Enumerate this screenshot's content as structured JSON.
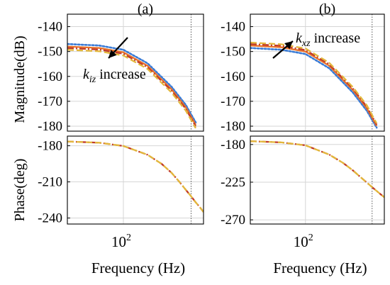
{
  "figure": {
    "ylabel_magnitude": "Magnitude(dB)",
    "ylabel_phase": "Phase(deg)"
  },
  "colors": {
    "blue_dotted": "#3a7bd5",
    "orange_solid": "#e8722a",
    "yellow_dashed": "#e3b83c",
    "red_dashdot": "#c0392b"
  },
  "chart_data": [
    {
      "type": "line",
      "panel": "(a)",
      "plot": "magnitude",
      "title": "(a)",
      "xlabel": "Frequency (Hz)",
      "ylabel": "Magnitude(dB)",
      "xscale": "log",
      "xlim": [
        20,
        1000
      ],
      "ylim": [
        -182,
        -135
      ],
      "yticks": [
        -140,
        -150,
        -160,
        -170,
        -180
      ],
      "xticks": [
        {
          "value": 100,
          "base": "10",
          "exp": "2"
        }
      ],
      "grid": true,
      "vline": 700,
      "annotation": {
        "italic": "k",
        "sub": "iz",
        "rest": " increase"
      },
      "x": [
        20,
        50,
        100,
        200,
        400,
        600,
        800
      ],
      "series": [
        {
          "color": "blue_dotted",
          "style": "dotted",
          "values": [
            -147.0,
            -147.6,
            -149.3,
            -154.7,
            -164.2,
            -171.4,
            -178.5
          ]
        },
        {
          "color": "orange_solid",
          "style": "solid",
          "values": [
            -148.0,
            -148.6,
            -150.3,
            -155.7,
            -165.2,
            -172.4,
            -179.5
          ]
        },
        {
          "color": "red_dashdot",
          "style": "dashdot",
          "values": [
            -148.6,
            -149.2,
            -150.9,
            -156.3,
            -165.8,
            -173.0,
            -180.1
          ]
        },
        {
          "color": "yellow_dashed",
          "style": "dashed",
          "values": [
            -149.3,
            -149.9,
            -151.6,
            -157.0,
            -166.5,
            -173.7,
            -180.8
          ]
        }
      ]
    },
    {
      "type": "line",
      "panel": "(a)",
      "plot": "phase",
      "xlabel": "Frequency (Hz)",
      "ylabel": "Phase(deg)",
      "xscale": "log",
      "xlim": [
        20,
        1000
      ],
      "ylim": [
        -245,
        -172
      ],
      "yticks": [
        -180,
        -210,
        -240
      ],
      "grid": true,
      "vline": 700,
      "x": [
        20,
        50,
        100,
        200,
        300,
        400,
        500,
        600,
        700,
        800,
        900,
        1000
      ],
      "series": [
        {
          "color": "red_dashdot",
          "style": "dashdot",
          "values": [
            -176.5,
            -177.5,
            -180.2,
            -187.5,
            -195,
            -202.5,
            -210,
            -216.5,
            -222,
            -227,
            -231,
            -235
          ]
        },
        {
          "color": "yellow_dashed",
          "style": "dashed",
          "values": [
            -176.5,
            -177.5,
            -180.2,
            -187.5,
            -195,
            -202.5,
            -210,
            -216.5,
            -222,
            -227,
            -231,
            -235
          ]
        }
      ]
    },
    {
      "type": "line",
      "panel": "(b)",
      "plot": "magnitude",
      "title": "(b)",
      "xlabel": "Frequency (Hz)",
      "ylabel": "Magnitude(dB)",
      "xscale": "log",
      "xlim": [
        20,
        1000
      ],
      "ylim": [
        -182,
        -135
      ],
      "yticks": [
        -140,
        -150,
        -160,
        -170,
        -180
      ],
      "xticks": [
        {
          "value": 100,
          "base": "10",
          "exp": "2"
        }
      ],
      "grid": true,
      "vline": 700,
      "annotation": {
        "italic": "k",
        "sub": "xz",
        "rest": " increase"
      },
      "x": [
        20,
        50,
        100,
        200,
        400,
        600,
        800
      ],
      "series": [
        {
          "color": "blue_dotted",
          "style": "dotted",
          "values": [
            -148.6,
            -149.3,
            -151.0,
            -156.7,
            -166.5,
            -173.8,
            -180.6
          ]
        },
        {
          "color": "orange_solid",
          "style": "solid",
          "values": [
            -147.6,
            -148.3,
            -150.0,
            -155.7,
            -165.5,
            -172.8,
            -179.9
          ]
        },
        {
          "color": "red_dashdot",
          "style": "dashdot",
          "values": [
            -147.0,
            -147.7,
            -149.4,
            -155.1,
            -164.9,
            -172.2,
            -179.4
          ]
        },
        {
          "color": "yellow_dashed",
          "style": "dashed",
          "values": [
            -146.4,
            -147.1,
            -148.8,
            -154.5,
            -164.3,
            -171.6,
            -178.9
          ]
        }
      ]
    },
    {
      "type": "line",
      "panel": "(b)",
      "plot": "phase",
      "xlabel": "Frequency (Hz)",
      "ylabel": "Phase(deg)",
      "xscale": "log",
      "xlim": [
        20,
        1000
      ],
      "ylim": [
        -275,
        -170
      ],
      "yticks": [
        -180,
        -225,
        -270
      ],
      "grid": true,
      "vline": 700,
      "x": [
        20,
        50,
        100,
        200,
        300,
        400,
        500,
        600,
        700,
        800,
        900,
        1000
      ],
      "series": [
        {
          "color": "red_dashdot",
          "style": "dashdot",
          "values": [
            -176,
            -177.5,
            -181,
            -192,
            -202,
            -211,
            -219,
            -225.5,
            -231,
            -235.5,
            -239.5,
            -243
          ]
        },
        {
          "color": "yellow_dashed",
          "style": "dashed",
          "values": [
            -176,
            -177.5,
            -181,
            -192,
            -202,
            -211,
            -219,
            -225.5,
            -231,
            -235.5,
            -239.5,
            -243
          ]
        }
      ]
    }
  ]
}
